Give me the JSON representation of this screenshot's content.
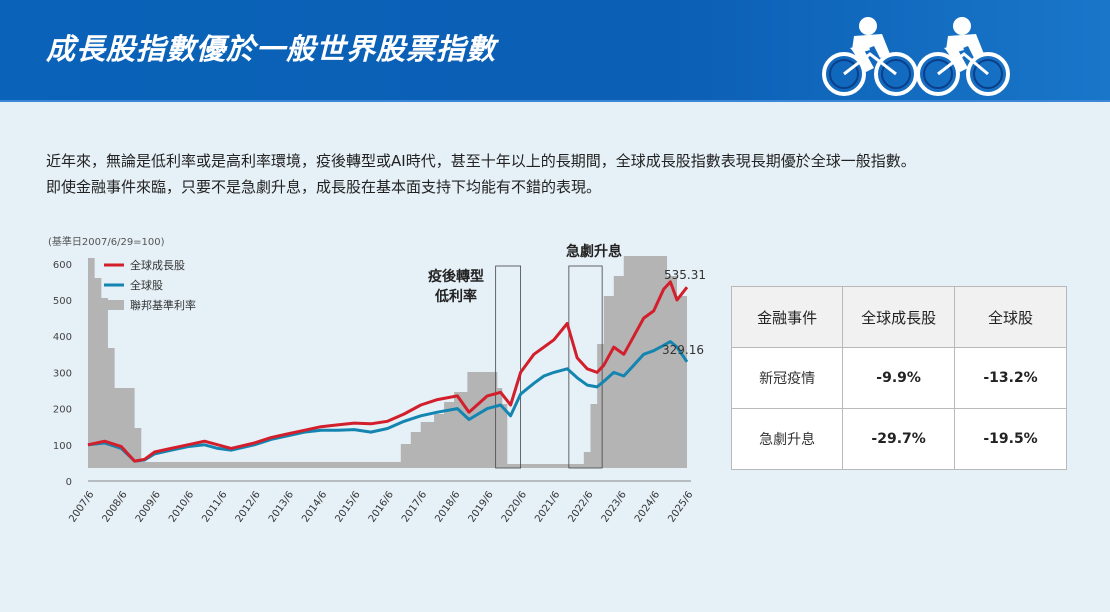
{
  "header": {
    "title": "成長股指數優於一般世界股票指數"
  },
  "intro": {
    "line1": "近年來，無論是低利率或是高利率環境，疫後轉型或AI時代，甚至十年以上的長期間，全球成長股指數表現長期優於全球一般指數。",
    "line2": "即使金融事件來臨，只要不是急劇升息，成長股在基本面支持下均能有不錯的表現。"
  },
  "colors": {
    "growth": "#d21f2b",
    "global": "#1385b0",
    "rate": "#b4b4b4",
    "header": "#0a63b8"
  },
  "chart_data": {
    "type": "line",
    "base_note": "(基準日2007/6/29=100)",
    "ylim": [
      0,
      600
    ],
    "yticks": [
      "0",
      "100",
      "200",
      "300",
      "400",
      "500",
      "600"
    ],
    "x_labels": [
      "2007/6",
      "2008/6",
      "2009/6",
      "2010/6",
      "2011/6",
      "2012/6",
      "2013/6",
      "2014/6",
      "2015/6",
      "2016/6",
      "2017/6",
      "2018/6",
      "2019/6",
      "2020/6",
      "2021/6",
      "2022/6",
      "2023/6",
      "2024/6",
      "2025/6"
    ],
    "legend": {
      "placement": "top-left"
    },
    "series": [
      {
        "name": "全球成長股",
        "x": [
          2007.5,
          2008.0,
          2008.5,
          2008.9,
          2009.2,
          2009.5,
          2010.0,
          2010.5,
          2011.0,
          2011.4,
          2011.8,
          2012.5,
          2013.0,
          2013.5,
          2014.0,
          2014.5,
          2015.0,
          2015.5,
          2016.0,
          2016.5,
          2017.0,
          2017.5,
          2018.0,
          2018.6,
          2018.95,
          2019.5,
          2019.9,
          2020.2,
          2020.5,
          2020.9,
          2021.2,
          2021.5,
          2021.9,
          2022.2,
          2022.5,
          2022.8,
          2023.0,
          2023.3,
          2023.6,
          2023.9,
          2024.2,
          2024.5,
          2024.8,
          2025.0,
          2025.2,
          2025.5
        ],
        "values": [
          100,
          110,
          95,
          55,
          60,
          80,
          90,
          100,
          110,
          100,
          90,
          105,
          120,
          130,
          140,
          150,
          155,
          160,
          158,
          165,
          185,
          210,
          225,
          235,
          190,
          235,
          245,
          210,
          300,
          350,
          370,
          390,
          435,
          340,
          310,
          300,
          320,
          370,
          350,
          400,
          450,
          470,
          530,
          550,
          500,
          535.31
        ]
      },
      {
        "name": "全球股",
        "x": [
          2007.5,
          2008.0,
          2008.5,
          2008.9,
          2009.2,
          2009.5,
          2010.0,
          2010.5,
          2011.0,
          2011.4,
          2011.8,
          2012.5,
          2013.0,
          2013.5,
          2014.0,
          2014.5,
          2015.0,
          2015.5,
          2016.0,
          2016.5,
          2017.0,
          2017.5,
          2018.0,
          2018.6,
          2018.95,
          2019.5,
          2019.9,
          2020.2,
          2020.5,
          2020.9,
          2021.2,
          2021.5,
          2021.9,
          2022.2,
          2022.5,
          2022.8,
          2023.0,
          2023.3,
          2023.6,
          2023.9,
          2024.2,
          2024.5,
          2024.8,
          2025.0,
          2025.2,
          2025.5
        ],
        "values": [
          100,
          105,
          90,
          55,
          58,
          75,
          85,
          95,
          100,
          90,
          85,
          100,
          115,
          125,
          135,
          140,
          140,
          142,
          135,
          145,
          165,
          180,
          190,
          200,
          170,
          200,
          210,
          180,
          240,
          270,
          290,
          300,
          310,
          285,
          265,
          260,
          275,
          300,
          290,
          320,
          350,
          360,
          375,
          385,
          370,
          329.16
        ]
      },
      {
        "name": "聯邦基準利率",
        "x": [
          2007.5,
          2007.7,
          2007.9,
          2008.1,
          2008.3,
          2008.6,
          2008.9,
          2009.1,
          2015.9,
          2016.9,
          2017.2,
          2017.5,
          2017.9,
          2018.2,
          2018.5,
          2018.9,
          2019.5,
          2019.8,
          2019.95,
          2020.1,
          2022.2,
          2022.4,
          2022.6,
          2022.8,
          2023.0,
          2023.3,
          2023.6,
          2024.7,
          2024.9,
          2025.2,
          2025.5
        ],
        "values": [
          5.25,
          4.75,
          4.25,
          3.0,
          2.0,
          2.0,
          1.0,
          0.15,
          0.15,
          0.6,
          0.9,
          1.15,
          1.35,
          1.65,
          1.9,
          2.4,
          2.4,
          2.0,
          1.6,
          0.1,
          0.1,
          0.4,
          1.6,
          3.1,
          4.3,
          4.8,
          5.3,
          5.3,
          4.8,
          4.3,
          4.3
        ]
      }
    ],
    "annotations": [
      {
        "text": "疫後轉型",
        "text2": "低利率",
        "range": [
          "2019/9",
          "2020/6"
        ]
      },
      {
        "text": "急劇升息",
        "range": [
          "2021/12",
          "2022/12"
        ]
      }
    ],
    "end_labels": [
      "535.31",
      "329.16"
    ]
  },
  "table": {
    "headers": [
      "金融事件",
      "全球成長股",
      "全球股"
    ],
    "rows": [
      [
        "新冠疫情",
        "-9.9%",
        "-13.2%"
      ],
      [
        "急劇升息",
        "-29.7%",
        "-19.5%"
      ]
    ]
  }
}
